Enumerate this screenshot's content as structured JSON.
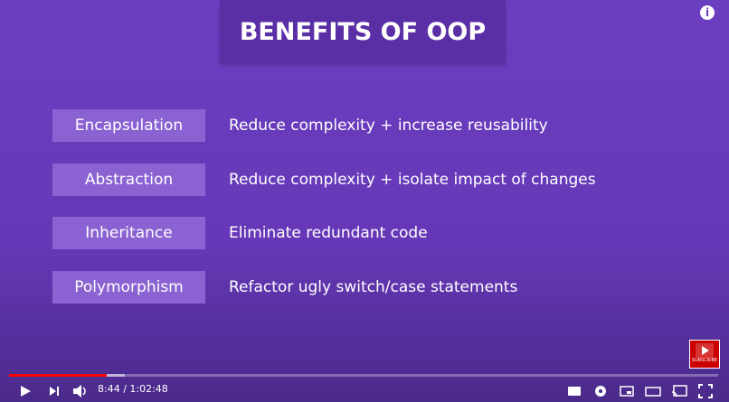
{
  "title": "BENEFITS OF OOP",
  "rows": [
    {
      "term": "Encapsulation",
      "description": "Reduce complexity + increase reusability"
    },
    {
      "term": "Abstraction",
      "description": "Reduce complexity + isolate impact of changes"
    },
    {
      "term": "Inheritance",
      "description": "Eliminate redundant code"
    },
    {
      "term": "Polymorphism",
      "description": "Refactor ugly switch/case statements"
    }
  ],
  "player": {
    "time": "8:44 / 1:02:48",
    "subscribe": "SUBSCRIBE",
    "info": "i"
  }
}
